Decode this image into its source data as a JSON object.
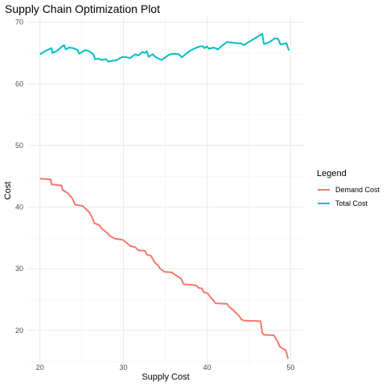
{
  "chart_data": {
    "type": "line",
    "title": "Supply Chain Optimization Plot",
    "xlabel": "Supply Cost",
    "ylabel": "Cost",
    "xlim": [
      18.5,
      51.5
    ],
    "ylim": [
      14.5,
      71
    ],
    "x_ticks": [
      20,
      30,
      40,
      50
    ],
    "x_tick_labels": [
      "20",
      "30",
      "40",
      "50"
    ],
    "y_ticks": [
      20,
      30,
      40,
      50,
      60,
      70
    ],
    "y_tick_labels": [
      "20",
      "30",
      "40",
      "50",
      "60",
      "70"
    ],
    "grid": true,
    "legend": {
      "title": "Legend",
      "position": "right"
    },
    "series": [
      {
        "name": "Demand Cost",
        "color": "#F8766D",
        "points": [
          [
            20,
            44.6
          ],
          [
            21.3,
            44.5
          ],
          [
            21.4,
            43.7
          ],
          [
            22.6,
            43.5
          ],
          [
            22.7,
            42.8
          ],
          [
            23.3,
            42.3
          ],
          [
            23.9,
            41.4
          ],
          [
            24.2,
            40.4
          ],
          [
            25.1,
            40.2
          ],
          [
            25.9,
            39.2
          ],
          [
            26.3,
            38.2
          ],
          [
            26.5,
            37.4
          ],
          [
            27.1,
            37.1
          ],
          [
            27.4,
            36.5
          ],
          [
            28.0,
            35.9
          ],
          [
            28.4,
            35.3
          ],
          [
            29.0,
            34.9
          ],
          [
            29.9,
            34.7
          ],
          [
            30.4,
            34.2
          ],
          [
            30.8,
            33.7
          ],
          [
            31.4,
            33.5
          ],
          [
            31.8,
            33.0
          ],
          [
            32.6,
            32.9
          ],
          [
            32.8,
            32.3
          ],
          [
            33.3,
            32.1
          ],
          [
            33.7,
            31.1
          ],
          [
            34.1,
            30.6
          ],
          [
            34.4,
            30.0
          ],
          [
            34.9,
            29.5
          ],
          [
            35.8,
            29.4
          ],
          [
            36.3,
            28.9
          ],
          [
            36.9,
            28.4
          ],
          [
            37.2,
            27.5
          ],
          [
            38.7,
            27.3
          ],
          [
            39.0,
            26.9
          ],
          [
            39.4,
            26.8
          ],
          [
            39.6,
            26.2
          ],
          [
            40.1,
            26.0
          ],
          [
            40.4,
            25.4
          ],
          [
            40.8,
            24.8
          ],
          [
            41.0,
            24.4
          ],
          [
            42.4,
            24.3
          ],
          [
            42.6,
            23.9
          ],
          [
            43.2,
            23.2
          ],
          [
            43.8,
            22.4
          ],
          [
            44.1,
            21.8
          ],
          [
            44.4,
            21.6
          ],
          [
            46.4,
            21.5
          ],
          [
            46.6,
            19.6
          ],
          [
            46.8,
            19.3
          ],
          [
            48.0,
            19.2
          ],
          [
            48.4,
            18.3
          ],
          [
            48.7,
            17.4
          ],
          [
            49.1,
            17.0
          ],
          [
            49.4,
            16.8
          ],
          [
            49.7,
            15.4
          ]
        ]
      },
      {
        "name": "Total Cost",
        "color": "#00BFC4",
        "points": [
          [
            20,
            64.8
          ],
          [
            20.6,
            65.3
          ],
          [
            21.4,
            65.8
          ],
          [
            21.5,
            65.0
          ],
          [
            22.1,
            65.4
          ],
          [
            22.6,
            66.0
          ],
          [
            22.9,
            66.3
          ],
          [
            23.1,
            65.6
          ],
          [
            23.5,
            65.9
          ],
          [
            24.0,
            65.8
          ],
          [
            24.5,
            65.5
          ],
          [
            24.7,
            64.9
          ],
          [
            25.1,
            65.2
          ],
          [
            25.4,
            65.5
          ],
          [
            25.9,
            65.3
          ],
          [
            26.4,
            64.8
          ],
          [
            26.6,
            64.0
          ],
          [
            27.0,
            64.1
          ],
          [
            27.3,
            63.9
          ],
          [
            27.9,
            64.0
          ],
          [
            28.2,
            63.6
          ],
          [
            28.8,
            63.8
          ],
          [
            29.1,
            63.8
          ],
          [
            29.5,
            64.1
          ],
          [
            29.9,
            64.4
          ],
          [
            30.4,
            64.3
          ],
          [
            30.8,
            64.2
          ],
          [
            31.4,
            64.8
          ],
          [
            31.8,
            64.6
          ],
          [
            32.3,
            65.2
          ],
          [
            32.5,
            65.0
          ],
          [
            32.8,
            65.3
          ],
          [
            33.0,
            64.4
          ],
          [
            33.5,
            64.8
          ],
          [
            33.8,
            64.4
          ],
          [
            34.2,
            64.1
          ],
          [
            34.6,
            63.9
          ],
          [
            35.2,
            64.5
          ],
          [
            35.6,
            64.8
          ],
          [
            36.1,
            64.9
          ],
          [
            36.6,
            64.8
          ],
          [
            37.0,
            64.3
          ],
          [
            37.5,
            64.9
          ],
          [
            38.0,
            65.4
          ],
          [
            38.6,
            65.8
          ],
          [
            39.2,
            66.1
          ],
          [
            39.5,
            66.1
          ],
          [
            39.7,
            65.8
          ],
          [
            40.0,
            66.1
          ],
          [
            40.2,
            65.7
          ],
          [
            40.8,
            65.9
          ],
          [
            41.3,
            65.6
          ],
          [
            41.8,
            66.2
          ],
          [
            42.4,
            66.8
          ],
          [
            43.0,
            66.7
          ],
          [
            43.6,
            66.6
          ],
          [
            44.0,
            66.6
          ],
          [
            44.4,
            66.3
          ],
          [
            45.0,
            66.8
          ],
          [
            45.5,
            67.2
          ],
          [
            46.3,
            67.9
          ],
          [
            46.6,
            68.1
          ],
          [
            46.8,
            66.5
          ],
          [
            47.2,
            66.6
          ],
          [
            47.6,
            66.9
          ],
          [
            48.1,
            67.4
          ],
          [
            48.5,
            67.3
          ],
          [
            48.8,
            66.4
          ],
          [
            49.2,
            66.5
          ],
          [
            49.5,
            66.6
          ],
          [
            49.8,
            65.4
          ]
        ]
      }
    ]
  }
}
